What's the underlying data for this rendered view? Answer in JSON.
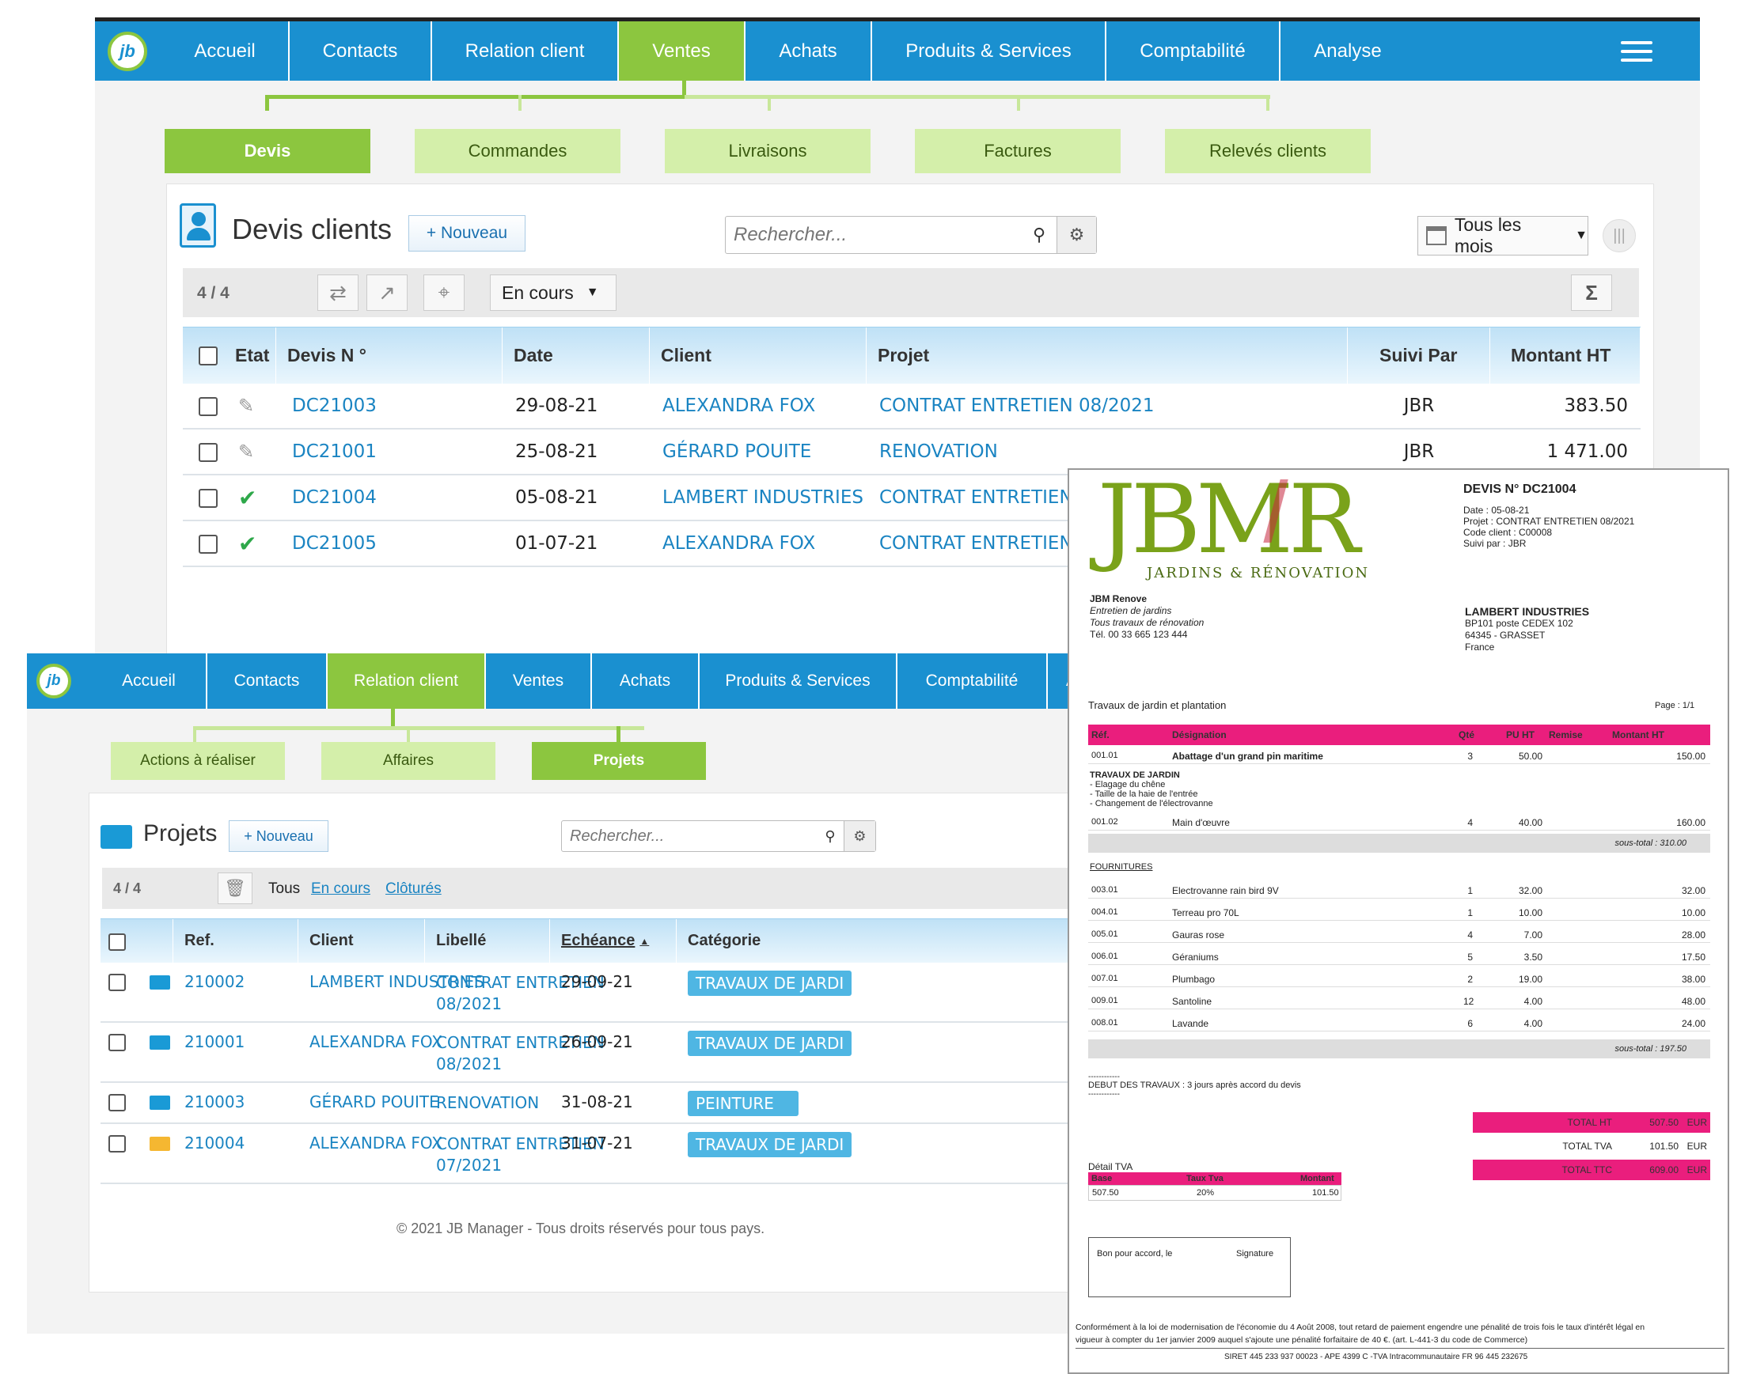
{
  "win1": {
    "nav": [
      "Accueil",
      "Contacts",
      "Relation client",
      "Ventes",
      "Achats",
      "Produits & Services",
      "Comptabilité",
      "Analyse"
    ],
    "nav_active": 3,
    "subtabs": [
      "Devis",
      "Commandes",
      "Livraisons",
      "Factures",
      "Relevés clients"
    ],
    "title": "Devis clients",
    "new_label": "+ Nouveau",
    "search_placeholder": "Rechercher...",
    "month_filter": "Tous les mois",
    "count": "4 / 4",
    "status_filter": "En cours",
    "sum_icon": "Σ",
    "headers": [
      "Etat",
      "Devis N °",
      "Date",
      "Client",
      "Projet",
      "Suivi Par",
      "Montant HT"
    ],
    "rows": [
      {
        "state": "pencil",
        "num": "DC21003",
        "date": "29-08-21",
        "client": "ALEXANDRA FOX",
        "projet": "CONTRAT ENTRETIEN 08/2021",
        "suivi": "JBR",
        "montant": "383.50"
      },
      {
        "state": "pencil",
        "num": "DC21001",
        "date": "25-08-21",
        "client": "GÉRARD POUITE",
        "projet": "RENOVATION",
        "suivi": "JBR",
        "montant": "1 471.00"
      },
      {
        "state": "check",
        "num": "DC21004",
        "date": "05-08-21",
        "client": "LAMBERT INDUSTRIES",
        "projet": "CONTRAT ENTRETIEN",
        "suivi": "",
        "montant": ""
      },
      {
        "state": "check",
        "num": "DC21005",
        "date": "01-07-21",
        "client": "ALEXANDRA FOX",
        "projet": "CONTRAT ENTRETIEN",
        "suivi": "",
        "montant": ""
      }
    ]
  },
  "win2": {
    "nav": [
      "Accueil",
      "Contacts",
      "Relation client",
      "Ventes",
      "Achats",
      "Produits & Services",
      "Comptabilité",
      "A"
    ],
    "subtabs": [
      "Actions à réaliser",
      "Affaires",
      "Projets"
    ],
    "title": "Projets",
    "new_label": "+ Nouveau",
    "search_placeholder": "Rechercher...",
    "count": "4 / 4",
    "filters": [
      "Tous",
      "En cours",
      "Clôturés"
    ],
    "headers": [
      "Ref.",
      "Client",
      "Libellé",
      "Echéance",
      "Catégorie"
    ],
    "rows": [
      {
        "ref": "210002",
        "client": "LAMBERT INDUSTRIES",
        "lib1": "CONTRAT ENTRETIEN",
        "lib2": "08/2021",
        "ech": "29-09-21",
        "cat": "TRAVAUX DE JARDI",
        "folder": "#1a9ad6"
      },
      {
        "ref": "210001",
        "client": "ALEXANDRA FOX",
        "lib1": "CONTRAT ENTRETIEN",
        "lib2": "08/2021",
        "ech": "26-09-21",
        "cat": "TRAVAUX DE JARDI",
        "folder": "#1a9ad6"
      },
      {
        "ref": "210003",
        "client": "GÉRARD POUITE",
        "lib1": "RENOVATION",
        "lib2": "",
        "ech": "31-08-21",
        "cat": "PEINTURE",
        "folder": "#1a9ad6"
      },
      {
        "ref": "210004",
        "client": "ALEXANDRA FOX",
        "lib1": "CONTRAT ENTRETIEN",
        "lib2": "07/2021",
        "ech": "31-07-21",
        "cat": "TRAVAUX DE JARDI",
        "folder": "#f5b731"
      }
    ],
    "footer": "© 2021 JB Manager - Tous droits réservés pour tous pays."
  },
  "doc": {
    "logo": "JBMR",
    "logo_sub": "JARDINS & RÉNOVATION",
    "title": "DEVIS  N° DC21004",
    "meta": [
      "Date : 05-08-21",
      "Projet : CONTRAT ENTRETIEN 08/2021",
      "Code client : C00008",
      "Suivi par : JBR"
    ],
    "company": "JBM Renove",
    "company_lines": [
      "Entretien de jardins",
      "Tous travaux de rénovation"
    ],
    "company_tel": "Tél. 00 33 665 123 444",
    "client": "LAMBERT INDUSTRIES",
    "client_lines": [
      "BP101 poste CEDEX 102",
      "64345 - GRASSET",
      "France"
    ],
    "subject": "Travaux de jardin et plantation",
    "page": "Page : 1/1",
    "cols": [
      "Réf.",
      "Désignation",
      "Qté",
      "PU HT",
      "Remise",
      "Montant HT"
    ],
    "line1": {
      "ref": "001.01",
      "des": "Abattage d'un grand pin maritime",
      "qte": "3",
      "pu": "50.00",
      "mt": "150.00"
    },
    "section1": "TRAVAUX DE JARDIN",
    "section1_lines": [
      "- Elagage du chêne",
      "- Taille de la haie de l'entrée",
      "- Changement de l'électrovanne"
    ],
    "line2": {
      "ref": "001.02",
      "des": "Main d'œuvre",
      "qte": "4",
      "pu": "40.00",
      "mt": "160.00"
    },
    "subtotal1": "sous-total :  310.00",
    "section2": "FOURNITURES",
    "items": [
      {
        "ref": "003.01",
        "des": "Electrovanne rain bird 9V",
        "qte": "1",
        "pu": "32.00",
        "mt": "32.00"
      },
      {
        "ref": "004.01",
        "des": "Terreau pro 70L",
        "qte": "1",
        "pu": "10.00",
        "mt": "10.00"
      },
      {
        "ref": "005.01",
        "des": "Gauras rose",
        "qte": "4",
        "pu": "7.00",
        "mt": "28.00"
      },
      {
        "ref": "006.01",
        "des": "Géraniums",
        "qte": "5",
        "pu": "3.50",
        "mt": "17.50"
      },
      {
        "ref": "007.01",
        "des": "Plumbago",
        "qte": "2",
        "pu": "19.00",
        "mt": "38.00"
      },
      {
        "ref": "009.01",
        "des": "Santoline",
        "qte": "12",
        "pu": "4.00",
        "mt": "48.00"
      },
      {
        "ref": "008.01",
        "des": "Lavande",
        "qte": "6",
        "pu": "4.00",
        "mt": "24.00"
      }
    ],
    "subtotal2": "sous-total :  197.50",
    "dashes": "------------",
    "debut": "DEBUT DES TRAVAUX : 3 jours après accord du devis",
    "totals": [
      {
        "label": "TOTAL HT",
        "val": "507.50",
        "cur": "EUR",
        "pink": true
      },
      {
        "label": "TOTAL TVA",
        "val": "101.50",
        "cur": "EUR",
        "pink": false
      },
      {
        "label": "TOTAL TTC",
        "val": "609.00",
        "cur": "EUR",
        "pink": true
      }
    ],
    "tva_title": "Détail TVA",
    "tva_cols": [
      "Base",
      "Taux Tva",
      "Montant"
    ],
    "tva_vals": [
      "507.50",
      "20%",
      "101.50"
    ],
    "accord": "Bon pour accord, le",
    "signature": "Signature",
    "legal1": "Conformément à la loi de modernisation de l'économie du 4 Août 2008, tout retard de paiement engendre une pénalité de trois fois le taux d'intérêt légal en",
    "legal2": "vigueur à compter du 1er janvier 2009 auquel s'ajoute une pénalité forfaitaire de 40 €. (art. L-441-3 du code de Commerce)",
    "siret": "SIRET 445 233 937 00023 - APE 4399 C -TVA Intracommunautaire FR 96 445 232675"
  },
  "colors": {
    "blue": "#1a90d0",
    "green": "#8cc63f",
    "pink": "#ea1e7d",
    "link": "#1a84c2"
  }
}
